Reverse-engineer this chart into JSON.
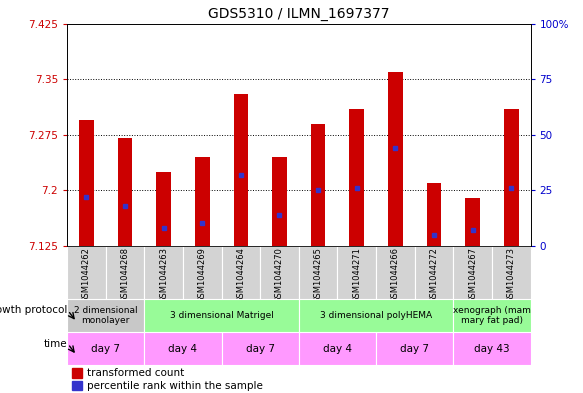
{
  "title": "GDS5310 / ILMN_1697377",
  "samples": [
    "GSM1044262",
    "GSM1044268",
    "GSM1044263",
    "GSM1044269",
    "GSM1044264",
    "GSM1044270",
    "GSM1044265",
    "GSM1044271",
    "GSM1044266",
    "GSM1044272",
    "GSM1044267",
    "GSM1044273"
  ],
  "transformed_counts": [
    7.295,
    7.27,
    7.225,
    7.245,
    7.33,
    7.245,
    7.29,
    7.31,
    7.36,
    7.21,
    7.19,
    7.31
  ],
  "percentile_ranks": [
    22,
    18,
    8,
    10,
    32,
    14,
    25,
    26,
    44,
    5,
    7,
    26
  ],
  "ymin": 7.125,
  "ymax": 7.425,
  "yticks": [
    7.125,
    7.2,
    7.275,
    7.35,
    7.425
  ],
  "right_yticks": [
    0,
    25,
    50,
    75,
    100
  ],
  "bar_color": "#cc0000",
  "blue_color": "#3333cc",
  "growth_protocol_groups": [
    {
      "label": "2 dimensional\nmonolayer",
      "start": 0,
      "end": 2,
      "color": "#c8c8c8"
    },
    {
      "label": "3 dimensional Matrigel",
      "start": 2,
      "end": 6,
      "color": "#90ee90"
    },
    {
      "label": "3 dimensional polyHEMA",
      "start": 6,
      "end": 10,
      "color": "#90ee90"
    },
    {
      "label": "xenograph (mam\nmary fat pad)",
      "start": 10,
      "end": 12,
      "color": "#90ee90"
    }
  ],
  "time_groups": [
    {
      "label": "day 7",
      "start": 0,
      "end": 2,
      "color": "#ff99ff"
    },
    {
      "label": "day 4",
      "start": 2,
      "end": 4,
      "color": "#ff99ff"
    },
    {
      "label": "day 7",
      "start": 4,
      "end": 6,
      "color": "#ff99ff"
    },
    {
      "label": "day 4",
      "start": 6,
      "end": 8,
      "color": "#ff99ff"
    },
    {
      "label": "day 7",
      "start": 8,
      "end": 10,
      "color": "#ff99ff"
    },
    {
      "label": "day 43",
      "start": 10,
      "end": 12,
      "color": "#ff99ff"
    }
  ],
  "legend_items": [
    {
      "color": "#cc0000",
      "label": "transformed count"
    },
    {
      "color": "#3333cc",
      "label": "percentile rank within the sample"
    }
  ],
  "left_axis_color": "#cc0000",
  "right_axis_color": "#0000cc"
}
